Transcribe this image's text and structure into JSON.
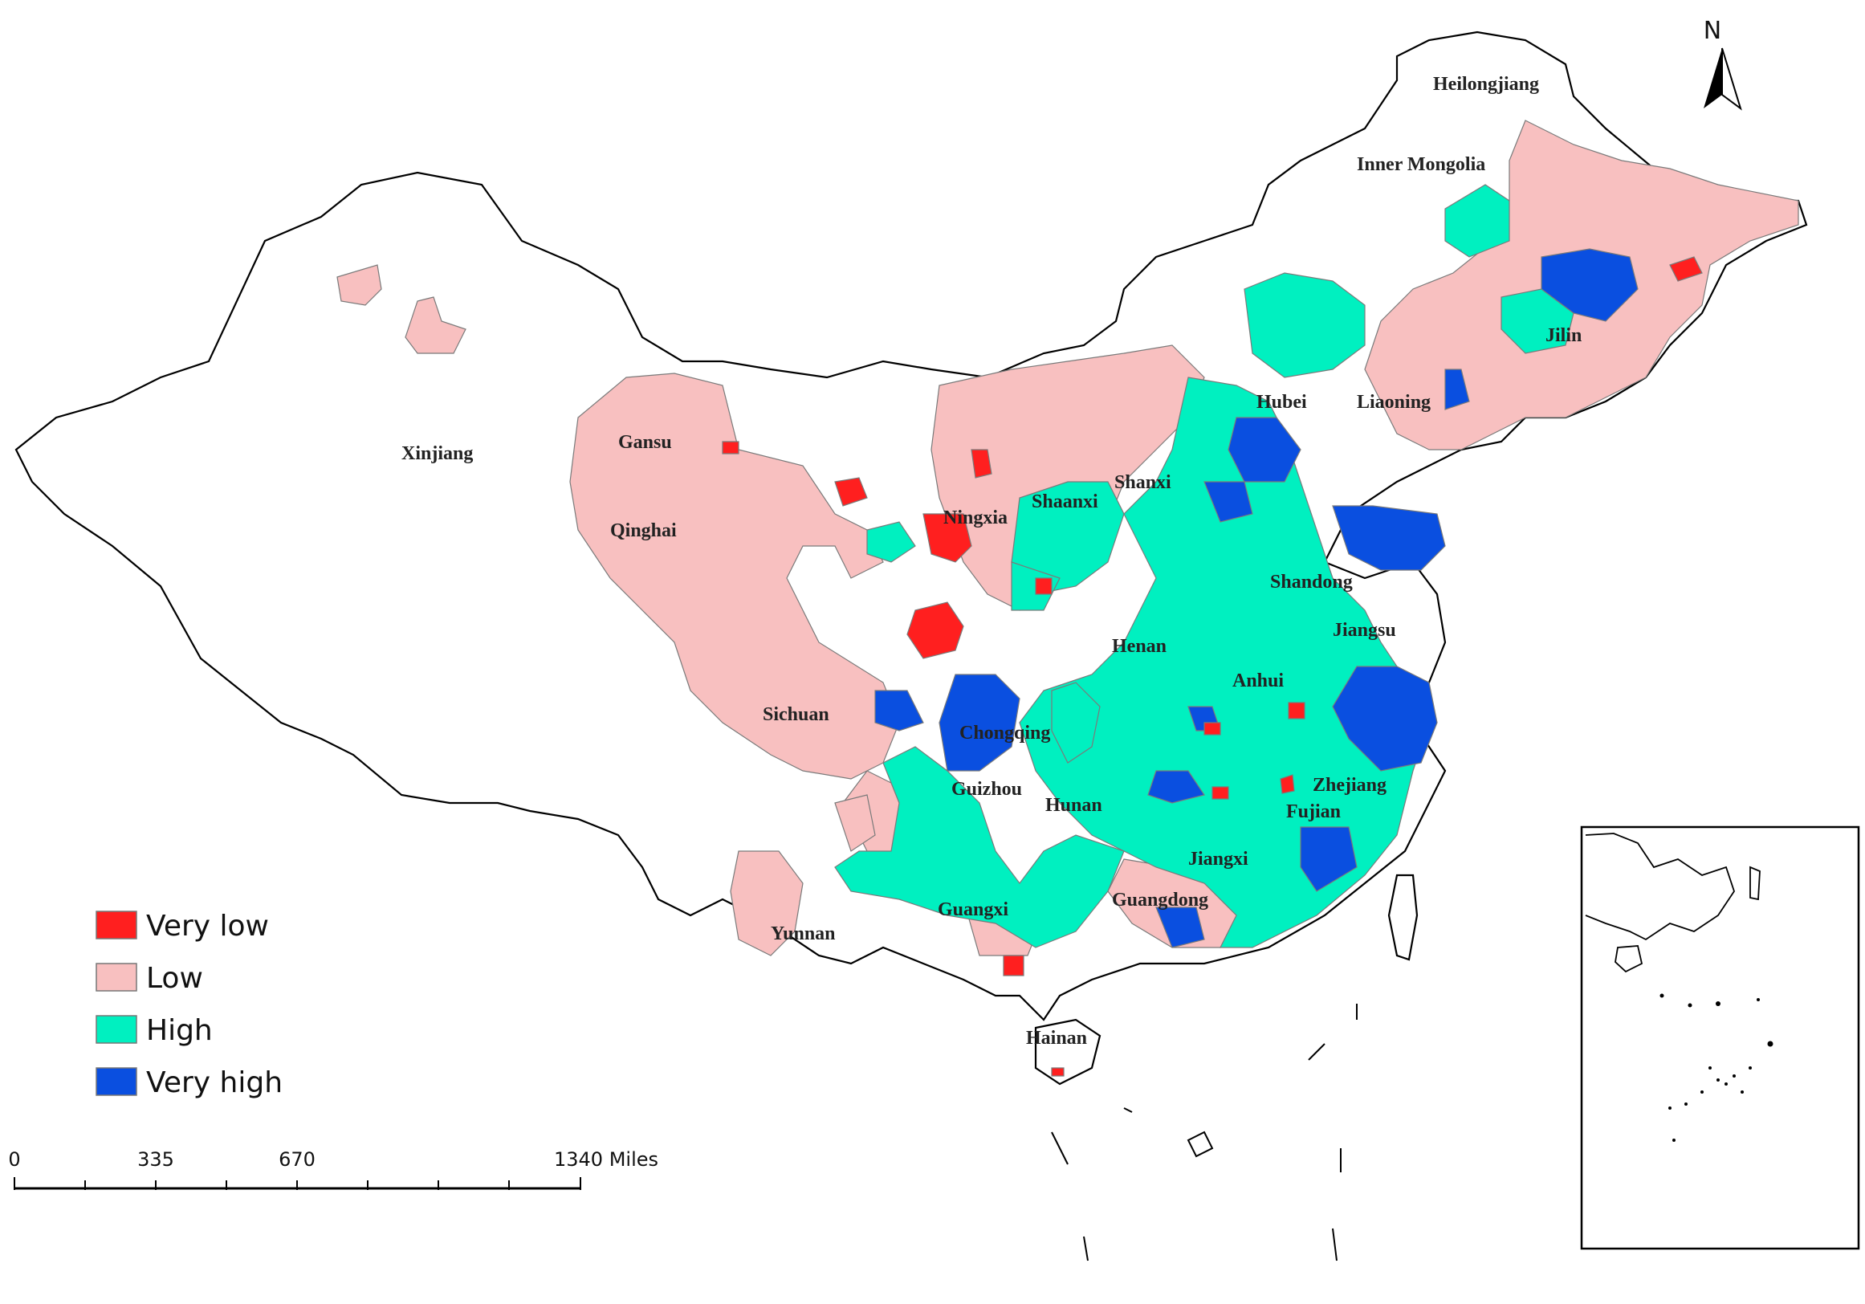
{
  "colors": {
    "very_low": "#ff1f1f",
    "low": "#f8c0c0",
    "high": "#00f0c0",
    "very_high": "#0a4fe0",
    "no_data": "#ffffff",
    "outline": "#000000"
  },
  "legend": {
    "items": [
      {
        "label": "Very low",
        "color_key": "very_low"
      },
      {
        "label": "Low",
        "color_key": "low"
      },
      {
        "label": "High",
        "color_key": "high"
      },
      {
        "label": "Very high",
        "color_key": "very_high"
      }
    ]
  },
  "scale_bar": {
    "ticks": [
      "0",
      "335",
      "670",
      "1340 Miles"
    ]
  },
  "north_arrow": {
    "label": "N",
    "icon": "north-arrow-icon"
  },
  "provinces": [
    {
      "name": "Heilongjiang"
    },
    {
      "name": "Inner Mongolia"
    },
    {
      "name": "Jilin"
    },
    {
      "name": "Liaoning"
    },
    {
      "name": "Hubei"
    },
    {
      "name": "Xinjiang"
    },
    {
      "name": "Gansu"
    },
    {
      "name": "Qinghai"
    },
    {
      "name": "Ningxia"
    },
    {
      "name": "Shaanxi"
    },
    {
      "name": "Shanxi"
    },
    {
      "name": "Shandong"
    },
    {
      "name": "Jiangsu"
    },
    {
      "name": "Henan"
    },
    {
      "name": "Anhui"
    },
    {
      "name": "Sichuan"
    },
    {
      "name": "Chongqing"
    },
    {
      "name": "Guizhou"
    },
    {
      "name": "Hunan"
    },
    {
      "name": "Zhejiang"
    },
    {
      "name": "Fujian"
    },
    {
      "name": "Jiangxi"
    },
    {
      "name": "Guangdong"
    },
    {
      "name": "Guangxi"
    },
    {
      "name": "Yunnan"
    },
    {
      "name": "Hainan"
    }
  ]
}
